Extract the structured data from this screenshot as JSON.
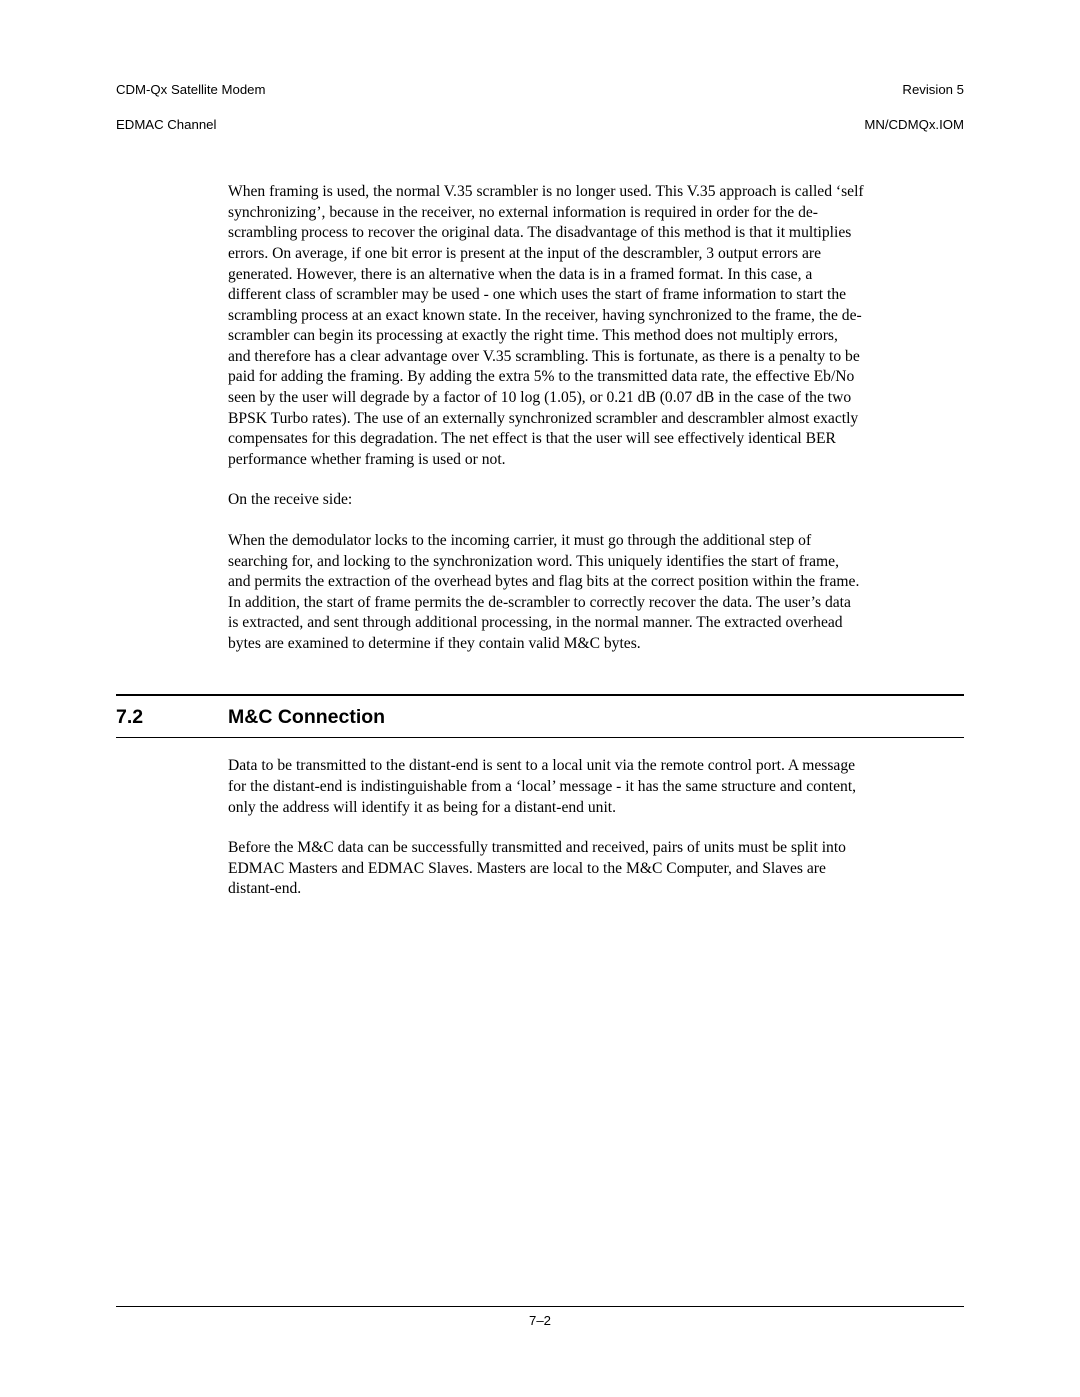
{
  "running_head": {
    "left_line1": "CDM-Qx Satellite Modem",
    "left_line2": "EDMAC Channel",
    "right_line1": "Revision 5",
    "right_line2": "MN/CDMQx.IOM"
  },
  "body": {
    "p1": "When framing is used, the normal V.35 scrambler is no longer used. This V.35 approach is called ‘self synchronizing’, because in the receiver, no external information is required in order for the de-scrambling process to recover the original data. The disadvantage of this method is that it multiplies errors. On average, if one bit error is present at the input of the descrambler, 3 output errors are generated. However, there is an alternative when the data is in a framed format. In this case, a different class of scrambler may be used - one which uses the start of frame information to start the scrambling process at an exact known state. In the receiver, having synchronized to the frame, the de-scrambler can begin its processing at exactly the right time. This method does not multiply errors, and therefore has a clear advantage over V.35 scrambling. This is fortunate, as there is a penalty to be paid for adding the framing. By adding the extra 5% to the transmitted data rate, the effective Eb/No seen by the user will degrade by a factor of 10 log (1.05), or 0.21 dB (0.07 dB in the case of the two BPSK Turbo rates). The use of an externally synchronized scrambler and descrambler almost exactly compensates for this degradation. The net effect is that the user will see effectively identical BER performance whether framing is used or not.",
    "p2": "On the receive side:",
    "p3": "When the demodulator locks to the incoming carrier, it must go through the additional step of searching for, and locking to the synchronization word. This uniquely identifies the start of frame, and permits the extraction of the overhead bytes and flag bits at the correct position within the frame. In addition, the start of frame permits the de-scrambler to correctly recover the data. The user’s data is extracted, and sent through additional processing, in the normal manner. The extracted overhead bytes are examined to determine if they contain valid M&C bytes."
  },
  "section": {
    "number": "7.2",
    "title": "M&C Connection",
    "p1": "Data to be transmitted to the distant-end is sent to a local unit via the remote control port. A message for the distant-end is indistinguishable from a ‘local’ message - it has the same structure and content, only the address will identify it as being for a distant-end unit.",
    "p2": "Before the M&C data can be successfully transmitted and received, pairs of units must be split into EDMAC Masters and EDMAC Slaves. Masters are local to the M&C Computer, and Slaves are distant-end."
  },
  "footer": {
    "page_number": "7–2"
  }
}
